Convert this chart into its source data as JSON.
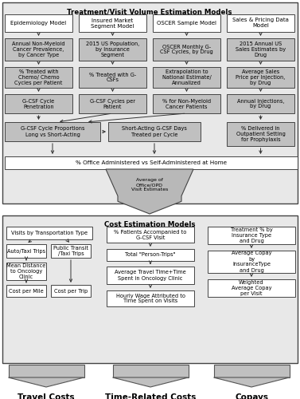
{
  "fig_width": 3.77,
  "fig_height": 5.0,
  "bg_light": "#e8e8e8",
  "box_white": "#ffffff",
  "box_gray": "#c0c0c0",
  "border_dark": "#444444",
  "text_color": "#000000",
  "title_top": "Treatment/Visit Volume Estimation Models",
  "title_cost": "Cost Estimation Models",
  "bottom_labels": [
    "Travel Costs",
    "Time-Related Costs",
    "Copays"
  ],
  "arrow_gray": "#888888"
}
